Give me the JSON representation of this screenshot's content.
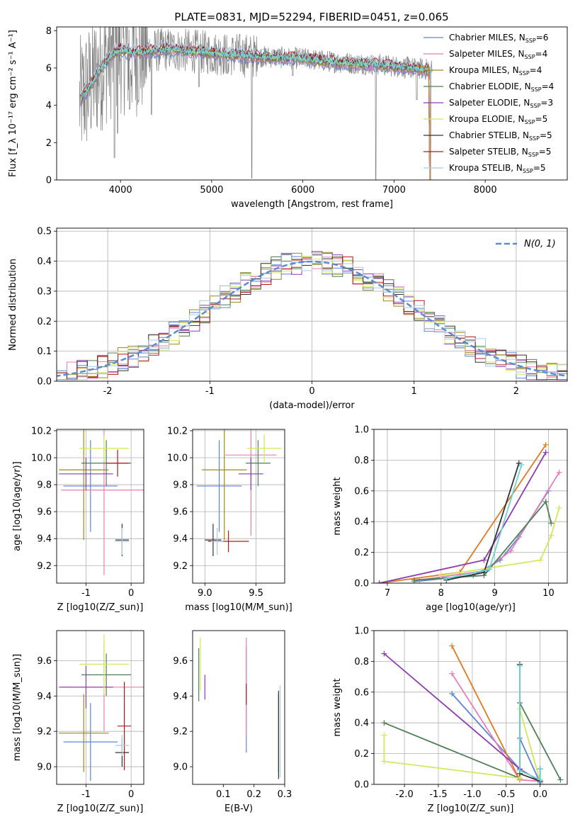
{
  "title": "PLATE=0831, MJD=52294, FIBERID=0451, z=0.065",
  "colors": {
    "Chabrier MILES": "#5b85d9",
    "Salpeter MILES": "#e77fb5",
    "Kroupa MILES": "#9a8a1d",
    "Chabrier ELODIE": "#4f7f56",
    "Salpeter ELODIE": "#8e3bb0",
    "Kroupa ELODIE": "#d4e85a",
    "Chabrier STELIB": "#333333",
    "Salpeter STELIB": "#b01a1a",
    "Kroupa STELIB": "#a7cbe8",
    "data": "#808080",
    "orange": "#e07b20",
    "cyan": "#6dd3d3",
    "normal": "#5b8bd0"
  },
  "chart_data": [
    {
      "id": "spectrum",
      "type": "line",
      "xlabel": "wavelength [Angstrom, rest frame]",
      "ylabel": "Flux [f_λ 10⁻¹⁷ erg cm⁻² s⁻¹ A⁻¹]",
      "xlim": [
        3300,
        8900
      ],
      "ylim": [
        0,
        8.2
      ],
      "xticks": [
        4000,
        5000,
        6000,
        7000,
        8000
      ],
      "yticks": [
        0,
        2,
        4,
        6,
        8
      ],
      "grid": false,
      "legend_position": "right",
      "legend": [
        {
          "name": "Chabrier MILES",
          "nssp": "6"
        },
        {
          "name": "Salpeter MILES",
          "nssp": "4"
        },
        {
          "name": "Kroupa MILES",
          "nssp": "4"
        },
        {
          "name": "Chabrier ELODIE",
          "nssp": "4"
        },
        {
          "name": "Salpeter ELODIE",
          "nssp": "3"
        },
        {
          "name": "Kroupa ELODIE",
          "nssp": "5"
        },
        {
          "name": "Chabrier STELIB",
          "nssp": "5"
        },
        {
          "name": "Salpeter STELIB",
          "nssp": "5"
        },
        {
          "name": "Kroupa STELIB",
          "nssp": "5"
        }
      ],
      "continuum": {
        "x": [
          3550,
          3600,
          3700,
          3800,
          3900,
          4000,
          4100,
          4300,
          4500,
          4800,
          5000,
          5300,
          5600,
          6000,
          6400,
          6800,
          7000,
          7200,
          7400
        ],
        "y": [
          4.2,
          4.6,
          5.3,
          6.1,
          6.7,
          7.0,
          6.8,
          6.9,
          7.0,
          6.9,
          6.8,
          6.7,
          6.6,
          6.5,
          6.3,
          6.2,
          6.1,
          6.0,
          5.9
        ]
      },
      "dips": [
        {
          "x": 3934,
          "y": 1.2
        },
        {
          "x": 3968,
          "y": 2.5
        },
        {
          "x": 4101,
          "y": 3.8
        },
        {
          "x": 4340,
          "y": 3.5
        },
        {
          "x": 4861,
          "y": 5.0
        },
        {
          "x": 5175,
          "y": 5.7
        },
        {
          "x": 5440,
          "y": 0.1
        },
        {
          "x": 5890,
          "y": 5.6
        },
        {
          "x": 6563,
          "y": 5.7
        },
        {
          "x": 6800,
          "y": 0.0
        },
        {
          "x": 7250,
          "y": 4.3
        },
        {
          "x": 7400,
          "y": 0.0
        }
      ]
    },
    {
      "id": "residuals",
      "type": "histogram",
      "xlabel": "(data-model)/error",
      "ylabel": "Normed distribution",
      "xlim": [
        -2.5,
        2.5
      ],
      "ylim": [
        0,
        0.51
      ],
      "xticks": [
        -2,
        -1,
        0,
        1,
        2
      ],
      "yticks": [
        0,
        0.1,
        0.2,
        0.3,
        0.4,
        0.5
      ],
      "grid": true,
      "legend_position": "top-right",
      "normal_label": "N(0, 1)",
      "bin_width": 0.1
    },
    {
      "id": "age-vs-Z",
      "type": "errorbar",
      "xlabel": "Z [log10(Z/Z_sun)]",
      "ylabel": "age [log10(age/yr)]",
      "xlim": [
        -1.65,
        0.28
      ],
      "ylim": [
        9.07,
        10.21
      ],
      "xticks": [
        -1,
        0
      ],
      "yticks": [
        9.2,
        9.4,
        9.6,
        9.8,
        10.0,
        10.2
      ],
      "grid": true,
      "points": [
        {
          "model": "Chabrier MILES",
          "x": -0.9,
          "xerr": 0.6,
          "y": 9.79,
          "yerr": 0.34
        },
        {
          "model": "Salpeter MILES",
          "x": -0.6,
          "xerr": 0.95,
          "y": 9.76,
          "yerr": 0.63
        },
        {
          "model": "Kroupa MILES",
          "x": -1.05,
          "xerr": 0.55,
          "y": 9.91,
          "yerr": 0.52
        },
        {
          "model": "Chabrier ELODIE",
          "x": -0.55,
          "xerr": 0.55,
          "y": 9.96,
          "yerr": 0.17
        },
        {
          "model": "Salpeter ELODIE",
          "x": -1.0,
          "xerr": 0.6,
          "y": 9.88,
          "yerr": 0.12
        },
        {
          "model": "Kroupa ELODIE",
          "x": -0.6,
          "xerr": 0.55,
          "y": 10.07,
          "yerr": 0.1
        },
        {
          "model": "Chabrier STELIB",
          "x": -0.2,
          "xerr": 0.15,
          "y": 9.39,
          "yerr": 0.12
        },
        {
          "model": "Salpeter STELIB",
          "x": -0.3,
          "xerr": 0.25,
          "y": 9.96,
          "yerr": 0.1
        },
        {
          "model": "Kroupa STELIB",
          "x": -0.2,
          "xerr": 0.15,
          "y": 9.38,
          "yerr": 0.1
        }
      ]
    },
    {
      "id": "age-vs-mass",
      "type": "errorbar",
      "xlabel": "mass [log10(M/M_sun)]",
      "ylabel": "",
      "xlim": [
        8.88,
        9.78
      ],
      "ylim": [
        9.07,
        10.21
      ],
      "xticks": [
        9.0,
        9.5
      ],
      "yticks": [
        9.2,
        9.4,
        9.6,
        9.8,
        10.0,
        10.2
      ],
      "grid": true,
      "points": [
        {
          "model": "Chabrier MILES",
          "x": 9.14,
          "xerr": 0.22,
          "y": 9.79,
          "yerr": 0.34
        },
        {
          "model": "Salpeter MILES",
          "x": 9.45,
          "xerr": 0.25,
          "y": 10.02,
          "yerr": 0.6
        },
        {
          "model": "Kroupa MILES",
          "x": 9.19,
          "xerr": 0.22,
          "y": 9.91,
          "yerr": 0.52
        },
        {
          "model": "Chabrier ELODIE",
          "x": 9.52,
          "xerr": 0.12,
          "y": 9.96,
          "yerr": 0.17
        },
        {
          "model": "Salpeter ELODIE",
          "x": 9.45,
          "xerr": 0.12,
          "y": 9.88,
          "yerr": 0.12
        },
        {
          "model": "Kroupa ELODIE",
          "x": 9.58,
          "xerr": 0.17,
          "y": 10.07,
          "yerr": 0.1
        },
        {
          "model": "Chabrier STELIB",
          "x": 9.08,
          "xerr": 0.08,
          "y": 9.39,
          "yerr": 0.12
        },
        {
          "model": "Salpeter STELIB",
          "x": 9.23,
          "xerr": 0.2,
          "y": 9.38,
          "yerr": 0.08
        },
        {
          "model": "Kroupa STELIB",
          "x": 9.12,
          "xerr": 0.06,
          "y": 9.38,
          "yerr": 0.1
        }
      ]
    },
    {
      "id": "weight-vs-age",
      "type": "line",
      "xlabel": "age [log10(age/yr)]",
      "ylabel": "mass weight",
      "xlim": [
        6.75,
        10.35
      ],
      "ylim": [
        0,
        1.0
      ],
      "xticks": [
        7,
        8,
        9,
        10
      ],
      "yticks": [
        0,
        0.2,
        0.4,
        0.6,
        0.8,
        1.0
      ],
      "grid": true,
      "series": [
        {
          "color_key": "Chabrier MILES",
          "x": [
            7.5,
            8.6,
            9.1,
            9.45,
            10.0
          ],
          "y": [
            0.01,
            0.05,
            0.15,
            0.3,
            0.6
          ]
        },
        {
          "color_key": "Salpeter MILES",
          "x": [
            7.6,
            8.8,
            9.3,
            10.2
          ],
          "y": [
            0.02,
            0.08,
            0.21,
            0.72
          ]
        },
        {
          "color_key": "orange",
          "x": [
            6.85,
            8.35,
            9.95
          ],
          "y": [
            0.0,
            0.07,
            0.9
          ]
        },
        {
          "color_key": "Chabrier ELODIE",
          "x": [
            7.5,
            8.8,
            9.95,
            10.05
          ],
          "y": [
            0.02,
            0.05,
            0.53,
            0.39
          ]
        },
        {
          "color_key": "Salpeter ELODIE",
          "x": [
            6.85,
            8.8,
            9.95
          ],
          "y": [
            0.0,
            0.15,
            0.85
          ]
        },
        {
          "color_key": "Kroupa ELODIE",
          "x": [
            8.0,
            9.85,
            10.05,
            10.2
          ],
          "y": [
            0.05,
            0.15,
            0.31,
            0.49
          ]
        },
        {
          "color_key": "Chabrier STELIB",
          "x": [
            8.1,
            8.8,
            9.45
          ],
          "y": [
            0.02,
            0.07,
            0.78
          ]
        },
        {
          "color_key": "cyan",
          "x": [
            8.1,
            8.9,
            9.5
          ],
          "y": [
            0.03,
            0.09,
            0.77
          ]
        }
      ]
    },
    {
      "id": "mass-vs-Z",
      "type": "errorbar",
      "xlabel": "Z [log10(Z/Z_sun)]",
      "ylabel": "mass [log10(M/M_sun)]",
      "xlim": [
        -1.65,
        0.28
      ],
      "ylim": [
        8.9,
        9.77
      ],
      "xticks": [
        -1,
        0
      ],
      "yticks": [
        9.0,
        9.2,
        9.4,
        9.6
      ],
      "grid": true,
      "points": [
        {
          "model": "Chabrier MILES",
          "x": -0.9,
          "xerr": 0.6,
          "y": 9.14,
          "yerr": 0.22
        },
        {
          "model": "Salpeter MILES",
          "x": -0.6,
          "xerr": 0.95,
          "y": 9.45,
          "yerr": 0.25
        },
        {
          "model": "Kroupa MILES",
          "x": -1.05,
          "xerr": 0.55,
          "y": 9.19,
          "yerr": 0.22
        },
        {
          "model": "Chabrier ELODIE",
          "x": -0.55,
          "xerr": 0.55,
          "y": 9.52,
          "yerr": 0.12
        },
        {
          "model": "Salpeter ELODIE",
          "x": -1.0,
          "xerr": 0.6,
          "y": 9.45,
          "yerr": 0.12
        },
        {
          "model": "Kroupa ELODIE",
          "x": -0.6,
          "xerr": 0.55,
          "y": 9.58,
          "yerr": 0.17
        },
        {
          "model": "Chabrier STELIB",
          "x": -0.2,
          "xerr": 0.15,
          "y": 9.08,
          "yerr": 0.08
        },
        {
          "model": "Salpeter STELIB",
          "x": -0.15,
          "xerr": 0.15,
          "y": 9.23,
          "yerr": 0.25
        },
        {
          "model": "Kroupa STELIB",
          "x": -0.2,
          "xerr": 0.15,
          "y": 9.12,
          "yerr": 0.06
        }
      ]
    },
    {
      "id": "mass-vs-EBV",
      "type": "errorbar",
      "xlabel": "E(B-V)",
      "ylabel": "",
      "xlim": [
        0.0,
        0.3
      ],
      "ylim": [
        8.9,
        9.77
      ],
      "xticks": [
        0.1,
        0.2,
        0.3
      ],
      "yticks": [
        9.0,
        9.2,
        9.4,
        9.6
      ],
      "grid": false,
      "points": [
        {
          "model": "Chabrier MILES",
          "x": 0.175,
          "xerr": 0,
          "y": 9.38,
          "yerr": 0.3
        },
        {
          "model": "Salpeter MILES",
          "x": 0.175,
          "xerr": 0,
          "y": 9.45,
          "yerr": 0.28
        },
        {
          "model": "Kroupa MILES",
          "x": 0.28,
          "xerr": 0,
          "y": 9.19,
          "yerr": 0.22
        },
        {
          "model": "Chabrier ELODIE",
          "x": 0.02,
          "xerr": 0,
          "y": 9.52,
          "yerr": 0.15
        },
        {
          "model": "Salpeter ELODIE",
          "x": 0.04,
          "xerr": 0,
          "y": 9.45,
          "yerr": 0.07
        },
        {
          "model": "Kroupa ELODIE",
          "x": 0.025,
          "xerr": 0,
          "y": 9.58,
          "yerr": 0.15
        },
        {
          "model": "Chabrier STELIB",
          "x": 0.28,
          "xerr": 0,
          "y": 9.18,
          "yerr": 0.25
        },
        {
          "model": "Salpeter STELIB",
          "x": 0.175,
          "xerr": 0,
          "y": 9.41,
          "yerr": 0.06
        },
        {
          "model": "Kroupa STELIB",
          "x": 0.285,
          "xerr": 0,
          "y": 9.2,
          "yerr": 0.26
        }
      ]
    },
    {
      "id": "weight-vs-Z",
      "type": "line",
      "xlabel": "Z [log10(Z/Z_sun)]",
      "ylabel": "mass weight",
      "xlim": [
        -2.45,
        0.4
      ],
      "ylim": [
        0,
        1.0
      ],
      "xticks": [
        -2.0,
        -1.5,
        -1.0,
        -0.5,
        0.0
      ],
      "yticks": [
        0,
        0.2,
        0.4,
        0.6,
        0.8,
        1.0
      ],
      "grid": true,
      "series": [
        {
          "color_key": "Chabrier MILES",
          "x": [
            -1.3,
            -0.3,
            -0.3,
            0.0
          ],
          "y": [
            0.59,
            0.1,
            0.3,
            0.01
          ]
        },
        {
          "color_key": "Salpeter MILES",
          "x": [
            -1.3,
            -0.3,
            0.0
          ],
          "y": [
            0.72,
            0.03,
            0.02
          ]
        },
        {
          "color_key": "orange",
          "x": [
            -1.3,
            -0.3
          ],
          "y": [
            0.9,
            0.03
          ]
        },
        {
          "color_key": "Chabrier ELODIE",
          "x": [
            -2.3,
            -0.3,
            -0.3,
            0.3
          ],
          "y": [
            0.4,
            0.04,
            0.53,
            0.03
          ]
        },
        {
          "color_key": "Salpeter ELODIE",
          "x": [
            -2.3,
            -0.3,
            0.0
          ],
          "y": [
            0.85,
            0.1,
            0.02
          ]
        },
        {
          "color_key": "Kroupa ELODIE",
          "x": [
            -2.3,
            -2.3,
            -0.3,
            -0.3,
            0.0
          ],
          "y": [
            0.32,
            0.15,
            0.04,
            0.49,
            0.02
          ]
        },
        {
          "color_key": "Chabrier STELIB",
          "x": [
            -0.3,
            -0.3,
            0.0,
            0.0
          ],
          "y": [
            0.78,
            0.07,
            0.02,
            0.1
          ]
        },
        {
          "color_key": "cyan",
          "x": [
            -0.3,
            -0.3,
            0.0,
            0.0
          ],
          "y": [
            0.77,
            0.09,
            0.03,
            0.1
          ]
        }
      ]
    }
  ]
}
